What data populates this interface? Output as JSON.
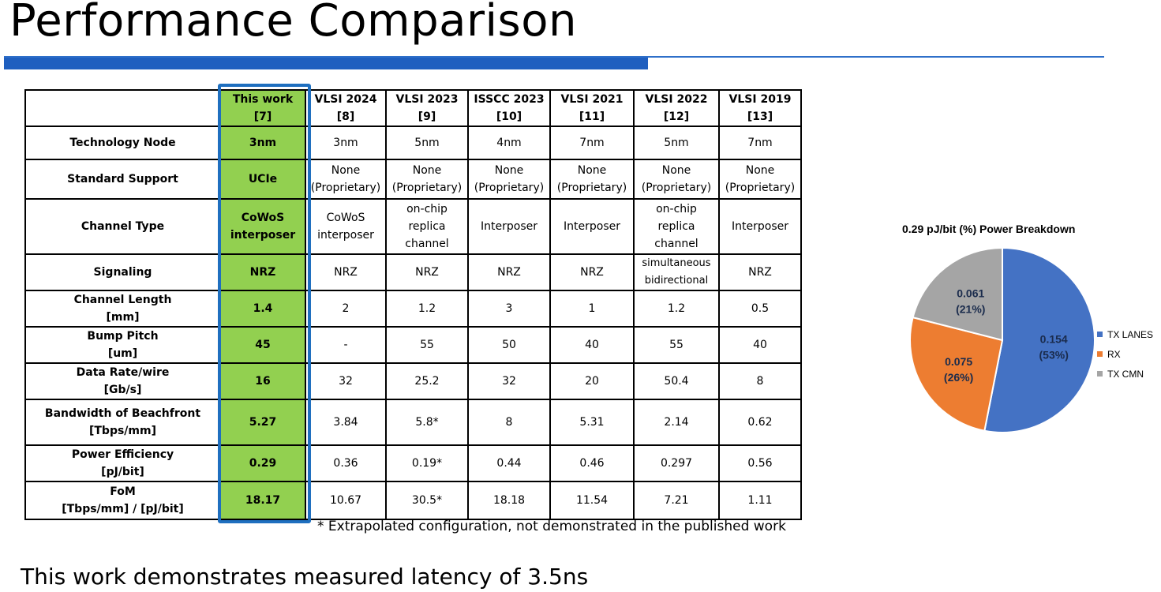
{
  "slide": {
    "title": "Performance Comparison",
    "footnote": "* Extrapolated configuration, not demonstrated in the published work",
    "bottom_text": "This work demonstrates measured latency of 3.5ns"
  },
  "table": {
    "columns": [
      [
        "This work",
        "[7]"
      ],
      [
        "VLSI 2024",
        "[8]"
      ],
      [
        "VLSI 2023",
        "[9]"
      ],
      [
        "ISSCC 2023",
        "[10]"
      ],
      [
        "VLSI 2021",
        "[11]"
      ],
      [
        "VLSI 2022",
        "[12]"
      ],
      [
        "VLSI 2019",
        "[13]"
      ]
    ],
    "rows": [
      {
        "label": [
          "Technology Node"
        ],
        "cells": [
          [
            "3nm"
          ],
          [
            "3nm"
          ],
          [
            "5nm"
          ],
          [
            "4nm"
          ],
          [
            "7nm"
          ],
          [
            "5nm"
          ],
          [
            "7nm"
          ]
        ]
      },
      {
        "label": [
          "Standard Support"
        ],
        "cells": [
          [
            "UCIe"
          ],
          [
            "None",
            "(Proprietary)"
          ],
          [
            "None",
            "(Proprietary)"
          ],
          [
            "None",
            "(Proprietary)"
          ],
          [
            "None",
            "(Proprietary)"
          ],
          [
            "None",
            "(Proprietary)"
          ],
          [
            "None",
            "(Proprietary)"
          ]
        ]
      },
      {
        "label": [
          "Channel Type"
        ],
        "cells": [
          [
            "CoWoS",
            "interposer"
          ],
          [
            "CoWoS",
            "interposer"
          ],
          [
            "on-chip",
            "replica",
            "channel"
          ],
          [
            "Interposer"
          ],
          [
            "Interposer"
          ],
          [
            "on-chip",
            "replica",
            "channel"
          ],
          [
            "Interposer"
          ]
        ]
      },
      {
        "label": [
          "Signaling"
        ],
        "cells": [
          [
            "NRZ"
          ],
          [
            "NRZ"
          ],
          [
            "NRZ"
          ],
          [
            "NRZ"
          ],
          [
            "NRZ"
          ],
          [
            "simultaneous",
            "bidirectional"
          ],
          [
            "NRZ"
          ]
        ]
      },
      {
        "label": [
          "Channel Length",
          "[mm]"
        ],
        "cells": [
          [
            "1.4"
          ],
          [
            "2"
          ],
          [
            "1.2"
          ],
          [
            "3"
          ],
          [
            "1"
          ],
          [
            "1.2"
          ],
          [
            "0.5"
          ]
        ]
      },
      {
        "label": [
          "Bump Pitch",
          "[um]"
        ],
        "cells": [
          [
            "45"
          ],
          [
            "-"
          ],
          [
            "55"
          ],
          [
            "50"
          ],
          [
            "40"
          ],
          [
            "55"
          ],
          [
            "40"
          ]
        ]
      },
      {
        "label": [
          "Data Rate/wire",
          "[Gb/s]"
        ],
        "cells": [
          [
            "16"
          ],
          [
            "32"
          ],
          [
            "25.2"
          ],
          [
            "32"
          ],
          [
            "20"
          ],
          [
            "50.4"
          ],
          [
            "8"
          ]
        ]
      },
      {
        "label": [
          "Bandwidth of Beachfront",
          "[Tbps/mm]"
        ],
        "cells": [
          [
            "5.27"
          ],
          [
            "3.84"
          ],
          [
            "5.8*"
          ],
          [
            "8"
          ],
          [
            "5.31"
          ],
          [
            "2.14"
          ],
          [
            "0.62"
          ]
        ]
      },
      {
        "label": [
          "Power Efficiency",
          "[pJ/bit]"
        ],
        "cells": [
          [
            "0.29"
          ],
          [
            "0.36"
          ],
          [
            "0.19*"
          ],
          [
            "0.44"
          ],
          [
            "0.46"
          ],
          [
            "0.297"
          ],
          [
            "0.56"
          ]
        ]
      },
      {
        "label": [
          "FoM",
          "[Tbps/mm] / [pJ/bit]"
        ],
        "cells": [
          [
            "18.17"
          ],
          [
            "10.67"
          ],
          [
            "30.5*"
          ],
          [
            "18.18"
          ],
          [
            "11.54"
          ],
          [
            "7.21"
          ],
          [
            "1.11"
          ]
        ]
      }
    ]
  },
  "chart_data": {
    "type": "pie",
    "title": "0.29 pJ/bit (%) Power Breakdown",
    "legend_position": "right",
    "slices": [
      {
        "name": "TX LANES",
        "value": 0.154,
        "percent": 53,
        "label_value": "0.154",
        "label_percent": "(53%)",
        "color": "#4472C4"
      },
      {
        "name": "RX",
        "value": 0.075,
        "percent": 26,
        "label_value": "0.075",
        "label_percent": "(26%)",
        "color": "#ED7D31"
      },
      {
        "name": "TX CMN",
        "value": 0.061,
        "percent": 21,
        "label_value": "0.061",
        "label_percent": "(21%)",
        "color": "#A5A5A5"
      }
    ]
  },
  "colors": {
    "accent_bar": "#1F5FBF",
    "this_work_fill": "#92D050",
    "this_work_frame": "#1F6FBF"
  }
}
